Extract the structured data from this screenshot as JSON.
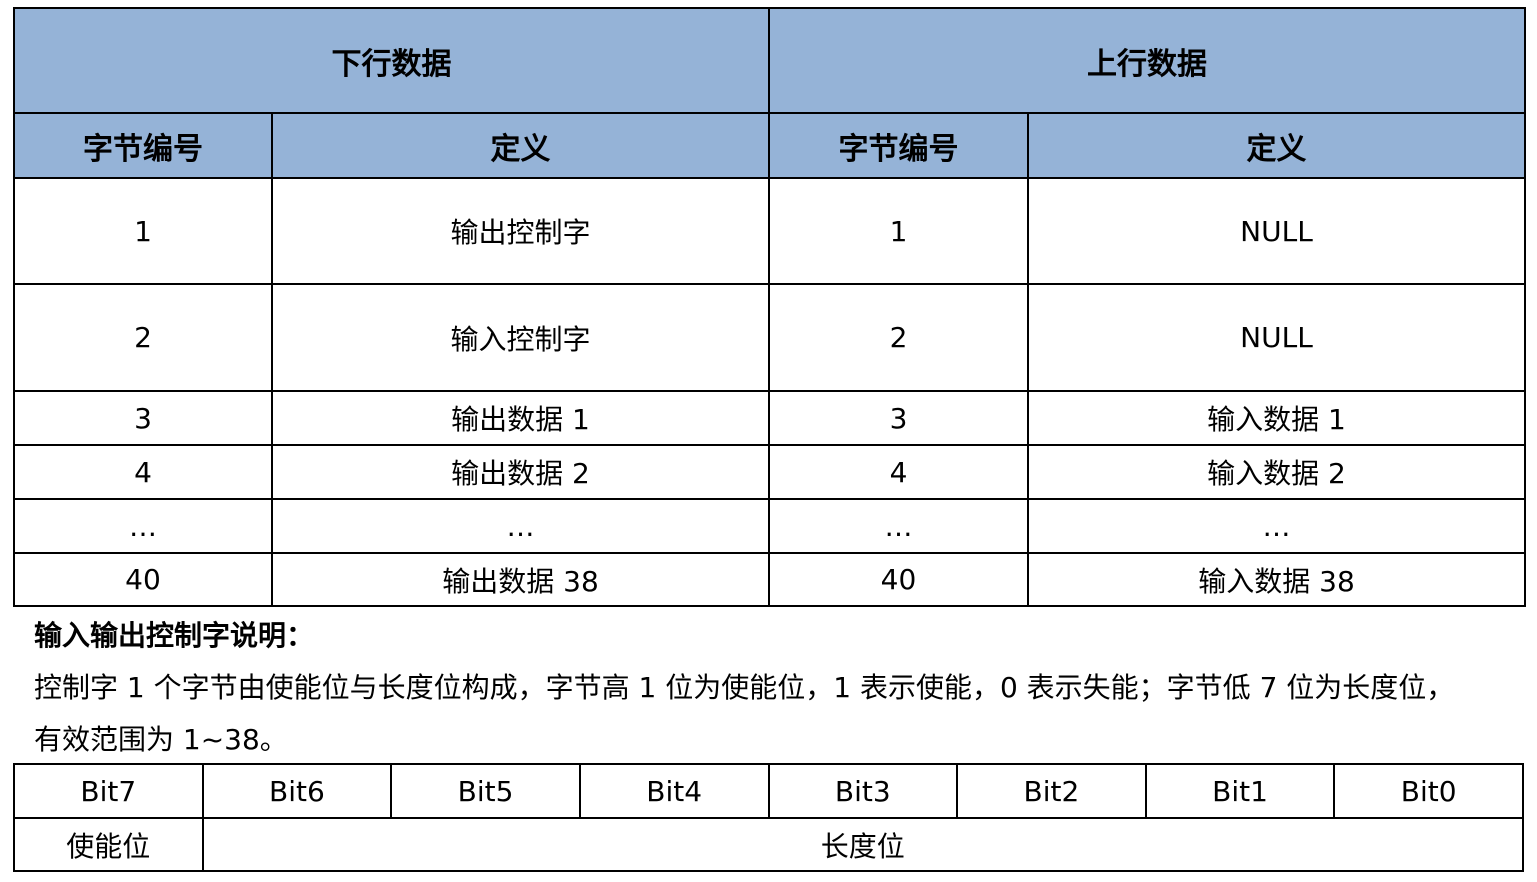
{
  "main_table": {
    "group_headers": [
      "下行数据",
      "上行数据"
    ],
    "column_headers": [
      "字节编号",
      "定义",
      "字节编号",
      "定义"
    ],
    "rows": [
      [
        "1",
        "输出控制字",
        "1",
        "NULL"
      ],
      [
        "2",
        "输入控制字",
        "2",
        "NULL"
      ],
      [
        "3",
        "输出数据 1",
        "3",
        "输入数据 1"
      ],
      [
        "4",
        "输出数据 2",
        "4",
        "输入数据 2"
      ],
      [
        "…",
        "…",
        "…",
        "…"
      ],
      [
        "40",
        "输出数据 38",
        "40",
        "输入数据 38"
      ]
    ],
    "header_color": "#95B3D7"
  },
  "note": {
    "title": "输入输出控制字说明：",
    "line1": "控制字 1 个字节由使能位与长度位构成，字节高 1 位为使能位，1 表示使能，0 表示失能；字节低 7 位为长度位，",
    "line2": "有效范围为 1~38。"
  },
  "bit_table": {
    "bits": [
      "Bit7",
      "Bit6",
      "Bit5",
      "Bit4",
      "Bit3",
      "Bit2",
      "Bit1",
      "Bit0"
    ],
    "enable_label": "使能位",
    "length_label": "长度位"
  }
}
